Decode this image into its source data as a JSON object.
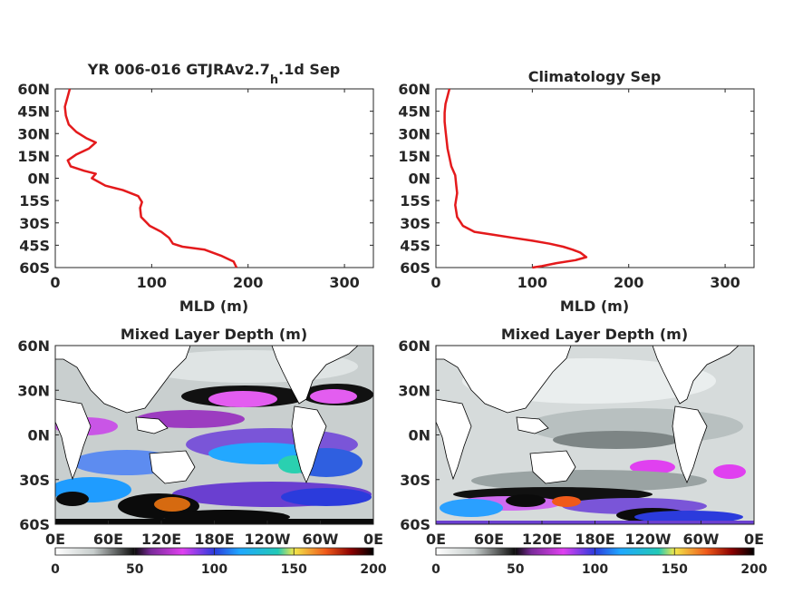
{
  "figure": {
    "panels": [
      {
        "title_main": "YR 006-016 GTJRAv2.7",
        "title_sub": "h",
        "title_tail": ".1d Sep"
      },
      {
        "title_main": "Climatology Sep"
      },
      {
        "title_main": "Mixed Layer Depth (m)"
      },
      {
        "title_main": "Mixed Layer Depth (m)"
      }
    ],
    "colors": {
      "profile_line": "#e41a1c",
      "axes": "#262626",
      "land": "#ffffff"
    }
  },
  "chart_data": [
    {
      "type": "line",
      "title": "YR 006-016 GTJRAv2.7h.1d Sep",
      "xlabel": "MLD (m)",
      "ylabel": "",
      "xlim": [
        0,
        330
      ],
      "ylim": [
        -60,
        60
      ],
      "xticks": [
        0,
        100,
        200,
        300
      ],
      "yticks": [
        60,
        45,
        30,
        15,
        0,
        -15,
        -30,
        -45,
        -60
      ],
      "yticklabels": [
        "60N",
        "45N",
        "30N",
        "15N",
        "0N",
        "15S",
        "30S",
        "45S",
        "60S"
      ],
      "series": [
        {
          "x": [
            15,
            13,
            10,
            11,
            14,
            22,
            32,
            42,
            35,
            22,
            13,
            16,
            30,
            42,
            38,
            52,
            70,
            86,
            90,
            88,
            89,
            98,
            110,
            118,
            122,
            132,
            155,
            172,
            185,
            188
          ],
          "y": [
            60,
            55,
            48,
            42,
            36,
            31,
            27,
            24,
            20,
            16,
            12,
            8,
            5,
            3,
            0,
            -5,
            -8,
            -12,
            -16,
            -20,
            -26,
            -32,
            -36,
            -40,
            -44,
            -46,
            -48,
            -52,
            -56,
            -60
          ]
        }
      ]
    },
    {
      "type": "line",
      "title": "Climatology Sep",
      "xlabel": "MLD (m)",
      "ylabel": "",
      "xlim": [
        0,
        330
      ],
      "ylim": [
        -60,
        60
      ],
      "xticks": [
        0,
        100,
        200,
        300
      ],
      "yticks": [
        60,
        45,
        30,
        15,
        0,
        -15,
        -30,
        -45,
        -60
      ],
      "yticklabels": [
        "60N",
        "45N",
        "30N",
        "15N",
        "0N",
        "15S",
        "30S",
        "45S",
        "60S"
      ],
      "series": [
        {
          "x": [
            14,
            12,
            10,
            9,
            9,
            10,
            11,
            12,
            14,
            16,
            20,
            21,
            22,
            20,
            22,
            28,
            40,
            60,
            80,
            100,
            118,
            132,
            142,
            150,
            156,
            145,
            125,
            110,
            100
          ],
          "y": [
            60,
            55,
            50,
            44,
            38,
            32,
            26,
            20,
            14,
            8,
            2,
            -4,
            -10,
            -18,
            -26,
            -32,
            -36,
            -38,
            -40,
            -42,
            -44,
            -46,
            -48,
            -50,
            -53,
            -55,
            -57,
            -59,
            -60
          ]
        }
      ]
    },
    {
      "type": "heatmap",
      "title": "Mixed Layer Depth (m)",
      "xticklabels": [
        "0E",
        "60E",
        "120E",
        "180E",
        "120W",
        "60W",
        "0E"
      ],
      "yticklabels": [
        "60N",
        "30N",
        "0N",
        "30S",
        "60S"
      ],
      "colorbar": {
        "range": [
          0,
          200
        ],
        "ticks": [
          0,
          50,
          100,
          150,
          200
        ]
      }
    },
    {
      "type": "heatmap",
      "title": "Mixed Layer Depth (m)",
      "xticklabels": [
        "0E",
        "60E",
        "120E",
        "180E",
        "120W",
        "60W",
        "0E"
      ],
      "yticklabels": [
        "60N",
        "30N",
        "0N",
        "30S",
        "60S"
      ],
      "colorbar": {
        "range": [
          0,
          200
        ],
        "ticks": [
          0,
          50,
          100,
          150,
          200
        ]
      }
    }
  ]
}
